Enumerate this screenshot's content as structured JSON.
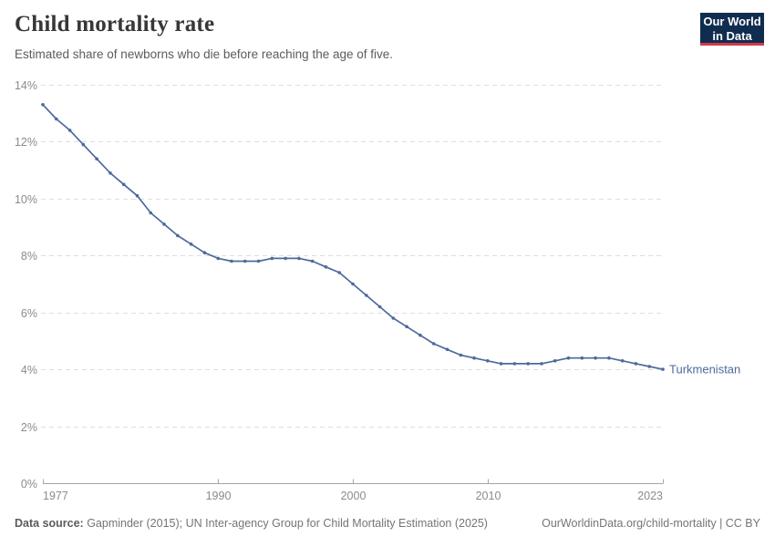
{
  "header": {
    "title": "Child mortality rate",
    "subtitle": "Estimated share of newborns who die before reaching the age of five.",
    "logo": {
      "line1": "Our World",
      "line2": "in Data"
    }
  },
  "footer": {
    "source_label": "Data source:",
    "source_text": " Gapminder (2015); UN Inter-agency Group for Child Mortality Estimation (2025)",
    "link_text": "OurWorldinData.org/child-mortality | CC BY"
  },
  "colors": {
    "line": "#4c6a9c",
    "entity_label": "#4c6a9c",
    "grid": "#dedede",
    "axis": "#a5a5a5",
    "tick_label": "#8b8b8b",
    "logo_navy": "#102d50",
    "logo_red": "#d03a4b"
  },
  "chart_data": {
    "type": "line",
    "title": "Child mortality rate",
    "subtitle": "Estimated share of newborns who die before reaching the age of five.",
    "xlabel": "",
    "ylabel": "",
    "xlim": [
      1977,
      2023
    ],
    "ylim": [
      0,
      14
    ],
    "grid": "horizontal-dashed",
    "legend": "inline-entity-label",
    "xticks": [
      1977,
      1990,
      2000,
      2010,
      2023
    ],
    "yticks": [
      0,
      2,
      4,
      6,
      8,
      10,
      12,
      14
    ],
    "ytick_suffix": "%",
    "series": [
      {
        "name": "Turkmenistan",
        "x": [
          1977,
          1978,
          1979,
          1980,
          1981,
          1982,
          1983,
          1984,
          1985,
          1986,
          1987,
          1988,
          1989,
          1990,
          1991,
          1992,
          1993,
          1994,
          1995,
          1996,
          1997,
          1998,
          1999,
          2000,
          2001,
          2002,
          2003,
          2004,
          2005,
          2006,
          2007,
          2008,
          2009,
          2010,
          2011,
          2012,
          2013,
          2014,
          2015,
          2016,
          2017,
          2018,
          2019,
          2020,
          2021,
          2022,
          2023
        ],
        "values": [
          13.3,
          12.8,
          12.4,
          11.9,
          11.4,
          10.9,
          10.5,
          10.1,
          9.5,
          9.1,
          8.7,
          8.4,
          8.1,
          7.9,
          7.8,
          7.8,
          7.8,
          7.9,
          7.9,
          7.9,
          7.8,
          7.6,
          7.4,
          7.0,
          6.6,
          6.2,
          5.8,
          5.5,
          5.2,
          4.9,
          4.7,
          4.5,
          4.4,
          4.3,
          4.2,
          4.2,
          4.2,
          4.2,
          4.3,
          4.4,
          4.4,
          4.4,
          4.4,
          4.3,
          4.2,
          4.1,
          4.0
        ]
      }
    ]
  }
}
